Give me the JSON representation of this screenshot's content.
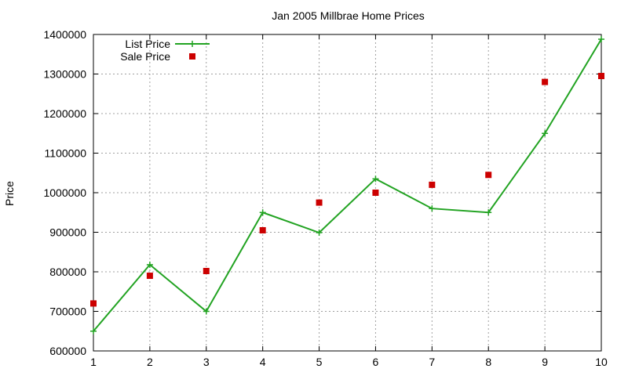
{
  "chart_data": {
    "type": "line",
    "title": "Jan 2005 Millbrae Home Prices",
    "xlabel": "",
    "ylabel": "Price",
    "xlim": [
      1,
      10
    ],
    "ylim": [
      600000,
      1400000
    ],
    "x_ticks": [
      1,
      2,
      3,
      4,
      5,
      6,
      7,
      8,
      9,
      10
    ],
    "y_ticks": [
      600000,
      700000,
      800000,
      900000,
      1000000,
      1100000,
      1200000,
      1300000,
      1400000
    ],
    "grid": true,
    "legend_position": "top-left",
    "x": [
      1,
      2,
      3,
      4,
      5,
      6,
      7,
      8,
      9,
      10
    ],
    "series": [
      {
        "name": "List Price",
        "style": "linespoints",
        "marker": "plus",
        "color": "#22a322",
        "values": [
          650000,
          818000,
          700000,
          950000,
          899000,
          1035000,
          960000,
          950000,
          1150000,
          1388000
        ]
      },
      {
        "name": "Sale Price",
        "style": "points",
        "marker": "square",
        "color": "#cc0000",
        "values": [
          720000,
          790000,
          802000,
          905000,
          975000,
          1000000,
          1020000,
          1045000,
          1280000,
          1295000
        ]
      }
    ]
  }
}
